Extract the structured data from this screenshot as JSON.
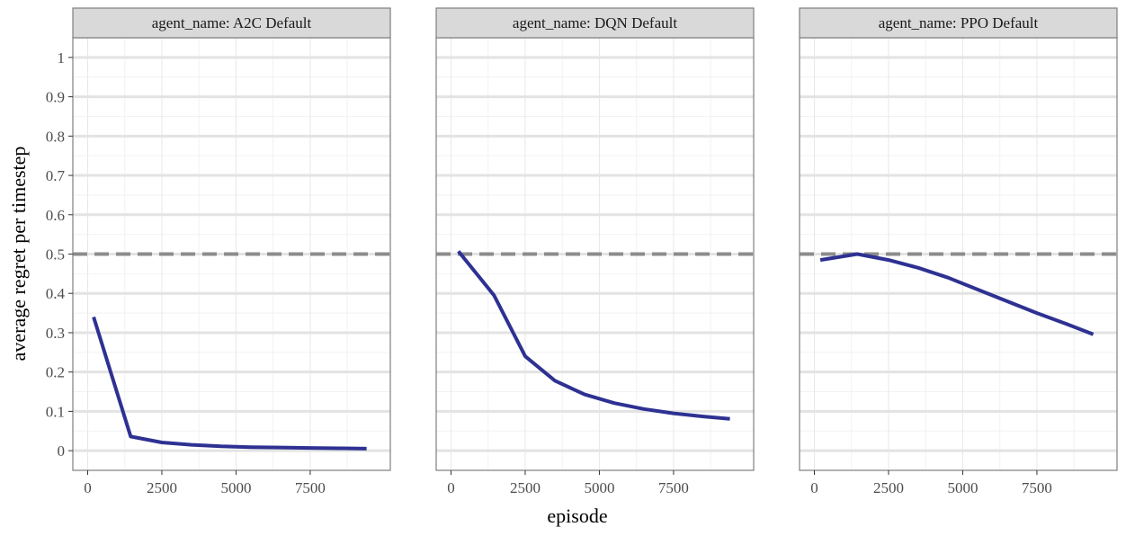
{
  "chart_data": {
    "type": "line",
    "facet_label_prefix": "agent_name: ",
    "xlabel": "episode",
    "ylabel": "average regret per timestep",
    "xlim": [
      -500,
      10200
    ],
    "ylim": [
      -0.05,
      1.05
    ],
    "x_ticks": [
      0,
      2500,
      5000,
      7500
    ],
    "x_tick_labels": [
      "0",
      "2500",
      "5000",
      "7500"
    ],
    "y_ticks": [
      0,
      0.1,
      0.2,
      0.3,
      0.4,
      0.5,
      0.6,
      0.7,
      0.8,
      0.9,
      1
    ],
    "y_tick_labels": [
      "0",
      "0.1",
      "0.2",
      "0.3",
      "0.4",
      "0.5",
      "0.6",
      "0.7",
      "0.8",
      "0.9",
      "1"
    ],
    "reference_line": {
      "y": 0.5,
      "style": "dashed",
      "color": "#8c8c8c"
    },
    "grid": true,
    "line_color": "#2e3192",
    "facets": [
      {
        "name": "A2C Default",
        "x": [
          200,
          1450,
          2500,
          3500,
          4500,
          5500,
          6500,
          7500,
          8500,
          9400
        ],
        "y": [
          0.34,
          0.036,
          0.021,
          0.015,
          0.011,
          0.009,
          0.008,
          0.007,
          0.006,
          0.005
        ]
      },
      {
        "name": "DQN Default",
        "x": [
          250,
          1450,
          2500,
          3500,
          4500,
          5500,
          6500,
          7500,
          8500,
          9400
        ],
        "y": [
          0.507,
          0.395,
          0.24,
          0.178,
          0.143,
          0.121,
          0.106,
          0.095,
          0.087,
          0.081
        ]
      },
      {
        "name": "PPO Default",
        "x": [
          200,
          1450,
          2500,
          3500,
          4500,
          5500,
          6500,
          7500,
          8500,
          9400
        ],
        "y": [
          0.485,
          0.5,
          0.485,
          0.465,
          0.44,
          0.41,
          0.38,
          0.35,
          0.322,
          0.296
        ]
      }
    ]
  }
}
